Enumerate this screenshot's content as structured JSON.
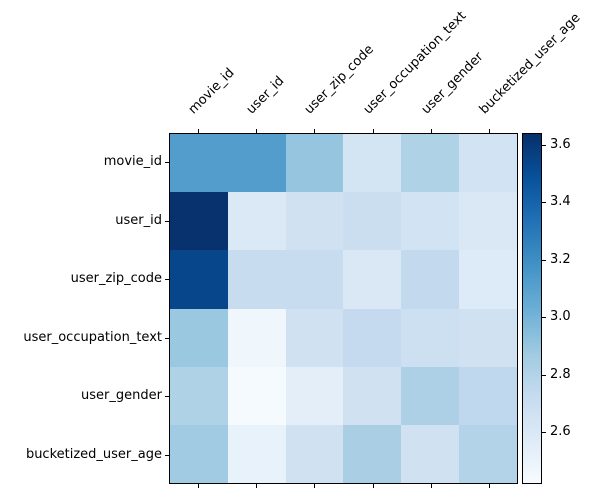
{
  "figure": {
    "background_color": "#ffffff",
    "spine_color": "#000000",
    "text_color": "#000000"
  },
  "chart_data": {
    "type": "heatmap",
    "title": "",
    "xlabel": "",
    "ylabel": "",
    "rows": [
      "movie_id",
      "user_id",
      "user_zip_code",
      "user_occupation_text",
      "user_gender",
      "bucketized_user_age"
    ],
    "columns": [
      "movie_id",
      "user_id",
      "user_zip_code",
      "user_occupation_text",
      "user_gender",
      "bucketized_user_age"
    ],
    "values": [
      [
        3.12,
        3.12,
        2.9,
        2.64,
        2.81,
        2.65
      ],
      [
        3.63,
        2.59,
        2.66,
        2.7,
        2.65,
        2.6
      ],
      [
        3.54,
        2.72,
        2.72,
        2.6,
        2.74,
        2.58
      ],
      [
        2.89,
        2.47,
        2.66,
        2.73,
        2.68,
        2.66
      ],
      [
        2.81,
        2.43,
        2.54,
        2.66,
        2.82,
        2.75
      ],
      [
        2.87,
        2.51,
        2.66,
        2.83,
        2.66,
        2.8
      ]
    ],
    "colormap": "Blues",
    "colormap_min_color": "#f7fbff",
    "colormap_max_color": "#08306b",
    "vmin": 2.42,
    "vmax": 3.64,
    "colorbar_ticks": [
      "2.6",
      "2.8",
      "3.0",
      "3.2",
      "3.4",
      "3.6"
    ],
    "legend_position": "right-colorbar",
    "grid": false
  }
}
